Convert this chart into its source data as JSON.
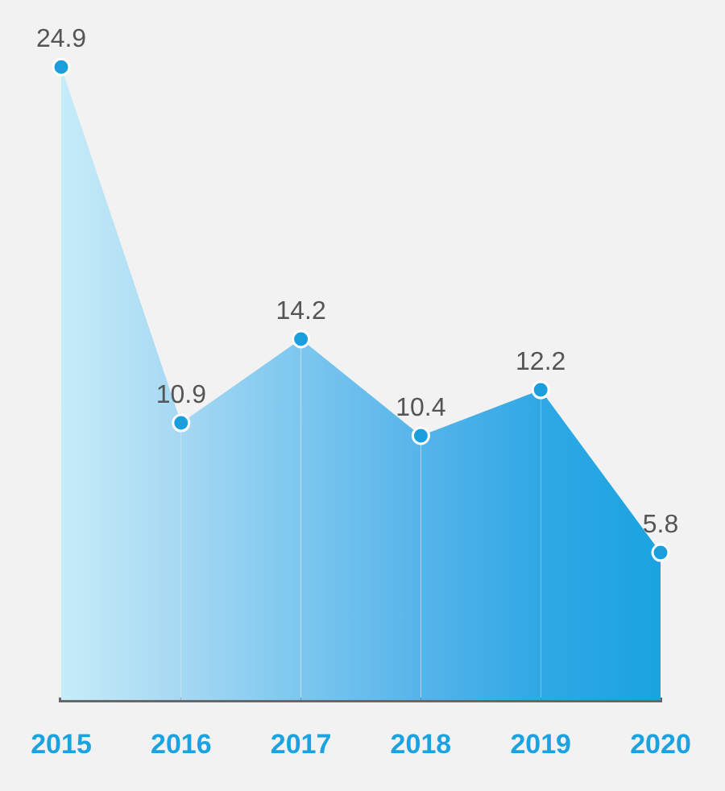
{
  "chart_data": {
    "type": "area",
    "categories": [
      "2015",
      "2016",
      "2017",
      "2018",
      "2019",
      "2020"
    ],
    "values": [
      24.9,
      10.9,
      14.2,
      10.4,
      12.2,
      5.8
    ],
    "color": "#1a9fdc",
    "colors": [
      "#c6ecf8",
      "#a6d8f3",
      "#7cc7ef",
      "#56b4ea",
      "#30a8e5",
      "#1aa3e0"
    ],
    "data_labels": true,
    "marker": "circle",
    "grid": false,
    "legend": false
  }
}
